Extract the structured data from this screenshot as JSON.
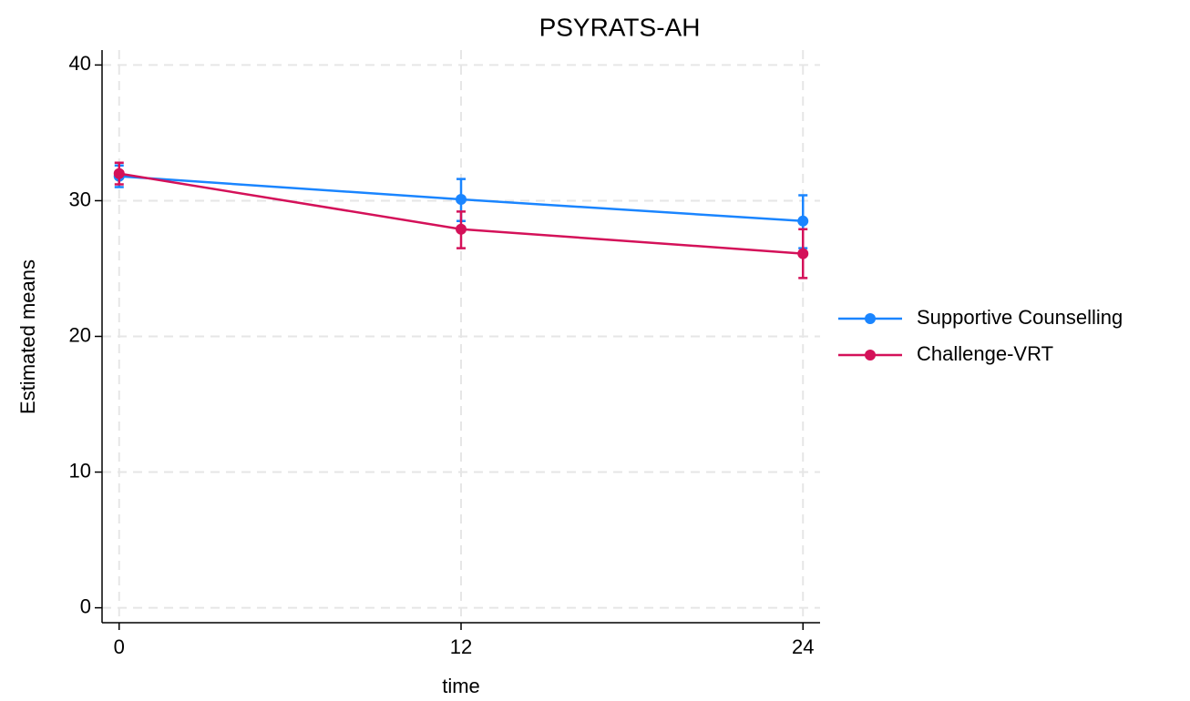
{
  "chart_data": {
    "type": "line",
    "title": "PSYRATS-AH",
    "x_label": "time",
    "y_label": "Estimated means",
    "x": [
      0,
      12,
      24
    ],
    "series": [
      {
        "name": "Supportive Counselling",
        "color": "#1a85ff",
        "values": [
          31.8,
          30.1,
          28.5
        ],
        "ci_lower": [
          31.0,
          28.5,
          26.5
        ],
        "ci_upper": [
          32.6,
          31.6,
          30.4
        ]
      },
      {
        "name": "Challenge-VRT",
        "color": "#d41159",
        "values": [
          32.0,
          27.9,
          26.1
        ],
        "ci_lower": [
          31.2,
          26.5,
          24.3
        ],
        "ci_upper": [
          32.8,
          29.2,
          27.9
        ]
      }
    ],
    "xlim": [
      -0.6,
      24.6
    ],
    "ylim": [
      -1.1,
      41.1
    ],
    "xticks": [
      0,
      12,
      24
    ],
    "yticks": [
      0,
      10,
      20,
      30,
      40
    ],
    "grid": true,
    "legend": "right"
  }
}
